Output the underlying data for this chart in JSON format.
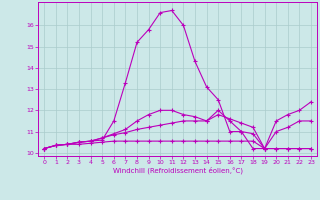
{
  "xlabel": "Windchill (Refroidissement éolien,°C)",
  "bg_color": "#cce8e8",
  "line_color": "#bb00bb",
  "grid_color": "#aacccc",
  "series": [
    [
      10.2,
      10.35,
      10.4,
      10.5,
      10.55,
      10.6,
      11.5,
      13.3,
      15.2,
      15.8,
      16.6,
      16.7,
      16.0,
      14.3,
      13.1,
      12.5,
      11.0,
      11.0,
      10.2,
      10.2,
      10.2,
      10.2,
      10.2,
      10.2
    ],
    [
      10.2,
      10.35,
      10.4,
      10.5,
      10.55,
      10.7,
      10.9,
      11.1,
      11.5,
      11.8,
      12.0,
      12.0,
      11.8,
      11.7,
      11.5,
      12.0,
      11.5,
      11.0,
      10.9,
      10.2,
      11.5,
      11.8,
      12.0,
      12.4
    ],
    [
      10.2,
      10.35,
      10.4,
      10.5,
      10.55,
      10.7,
      10.85,
      10.95,
      11.1,
      11.2,
      11.3,
      11.4,
      11.5,
      11.5,
      11.5,
      11.8,
      11.6,
      11.4,
      11.2,
      10.2,
      11.0,
      11.2,
      11.5,
      11.5
    ],
    [
      10.2,
      10.35,
      10.4,
      10.4,
      10.45,
      10.5,
      10.55,
      10.55,
      10.55,
      10.55,
      10.55,
      10.55,
      10.55,
      10.55,
      10.55,
      10.55,
      10.55,
      10.55,
      10.55,
      10.2,
      10.2,
      10.2,
      10.2,
      10.2
    ]
  ],
  "xlim": [
    -0.5,
    23.5
  ],
  "ylim": [
    9.85,
    17.1
  ],
  "yticks": [
    10,
    11,
    12,
    13,
    14,
    15,
    16
  ],
  "xticks": [
    0,
    1,
    2,
    3,
    4,
    5,
    6,
    7,
    8,
    9,
    10,
    11,
    12,
    13,
    14,
    15,
    16,
    17,
    18,
    19,
    20,
    21,
    22,
    23
  ]
}
